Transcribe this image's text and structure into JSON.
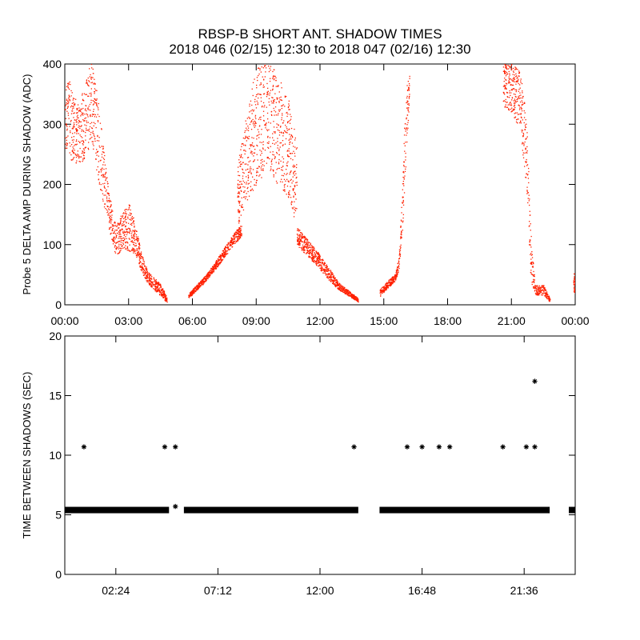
{
  "title_line1": "RBSP-B SHORT ANT. SHADOW TIMES",
  "title_line2": "2018 046 (02/15) 12:30 to 2018 047 (02/16) 12:30",
  "colors": {
    "delta_amp": "#ff2000",
    "shadow_interval": "#000000",
    "axes": "#000000"
  },
  "chart_data": [
    {
      "type": "scatter",
      "ylabel": "Probe 5 DELTA AMP DURING SHADOW (ADC)",
      "xlabel": "",
      "xlim_hours": [
        0,
        24
      ],
      "ylim": [
        0,
        400
      ],
      "yticks": [
        0,
        100,
        200,
        300,
        400
      ],
      "xtick_labels": [
        "00:00",
        "03:00",
        "06:00",
        "09:00",
        "12:00",
        "15:00",
        "18:00",
        "21:00",
        "00:00"
      ],
      "xtick_hours": [
        0,
        3,
        6,
        9,
        12,
        15,
        18,
        21,
        24
      ],
      "marker": "dot",
      "series": [
        {
          "color": "#ff2000",
          "segments": [
            {
              "t": [
                0.0,
                0.3,
                0.6,
                0.9,
                1.2,
                1.5,
                1.8,
                2.1,
                2.4,
                2.7,
                3.0,
                3.3,
                3.6,
                3.9,
                4.2,
                4.5,
                4.8
              ],
              "center": [
                330,
                300,
                285,
                300,
                340,
                290,
                215,
                150,
                105,
                125,
                130,
                110,
                70,
                45,
                35,
                25,
                8
              ],
              "spread": [
                70,
                60,
                50,
                60,
                70,
                70,
                50,
                30,
                25,
                30,
                40,
                25,
                15,
                10,
                10,
                10,
                4
              ]
            },
            {
              "t": [
                5.8,
                6.5,
                7.0,
                7.5,
                8.0,
                8.3
              ],
              "center": [
                15,
                40,
                62,
                88,
                112,
                125
              ],
              "spread": [
                4,
                5,
                6,
                8,
                10,
                10
              ]
            },
            {
              "t": [
                8.1,
                8.5,
                9.0,
                9.5,
                10.0,
                10.5,
                10.9
              ],
              "center": [
                180,
                240,
                300,
                320,
                290,
                260,
                200
              ],
              "spread": [
                50,
                70,
                100,
                95,
                90,
                85,
                70
              ]
            },
            {
              "t": [
                10.9,
                11.4,
                11.9,
                12.4,
                12.9,
                13.4,
                13.8
              ],
              "center": [
                115,
                95,
                75,
                52,
                30,
                18,
                8
              ],
              "spread": [
                15,
                14,
                12,
                10,
                6,
                4,
                3
              ]
            },
            {
              "t": [
                14.8,
                15.2,
                15.5,
                15.7,
                15.85,
                16.0,
                16.2
              ],
              "center": [
                20,
                35,
                45,
                70,
                150,
                280,
                380
              ],
              "spread": [
                6,
                6,
                6,
                12,
                40,
                60,
                30
              ]
            },
            {
              "t": [
                20.6,
                21.0,
                21.4,
                21.7,
                21.9,
                22.1,
                22.5,
                22.8
              ],
              "center": [
                370,
                360,
                340,
                250,
                80,
                25,
                25,
                8
              ],
              "spread": [
                40,
                40,
                50,
                60,
                40,
                8,
                8,
                3
              ]
            },
            {
              "t": [
                23.9,
                24.0
              ],
              "center": [
                45,
                25
              ],
              "spread": [
                20,
                10
              ]
            }
          ]
        }
      ]
    },
    {
      "type": "scatter",
      "ylabel": "TIME BETWEEN SHADOWS (SEC)",
      "xlabel": "",
      "xlim_hours": [
        0,
        24
      ],
      "ylim": [
        0,
        20
      ],
      "yticks": [
        0,
        5,
        10,
        15,
        20
      ],
      "xtick_labels": [
        "02:24",
        "07:12",
        "12:00",
        "16:48",
        "21:36"
      ],
      "xtick_hours": [
        2.4,
        7.2,
        12.0,
        16.8,
        21.6
      ],
      "marker": "asterisk",
      "series": [
        {
          "color": "#000000",
          "baseline_value": 5.4,
          "baseline_ranges_hours": [
            [
              0.0,
              4.9
            ],
            [
              5.6,
              13.8
            ],
            [
              14.8,
              22.8
            ],
            [
              23.7,
              24.0
            ]
          ],
          "points": [
            {
              "t": 0.9,
              "v": 10.7
            },
            {
              "t": 4.7,
              "v": 10.7
            },
            {
              "t": 5.2,
              "v": 10.7
            },
            {
              "t": 5.2,
              "v": 5.7
            },
            {
              "t": 13.6,
              "v": 10.7
            },
            {
              "t": 16.1,
              "v": 10.7
            },
            {
              "t": 16.8,
              "v": 10.7
            },
            {
              "t": 17.6,
              "v": 10.7
            },
            {
              "t": 18.1,
              "v": 10.7
            },
            {
              "t": 20.6,
              "v": 10.7
            },
            {
              "t": 21.7,
              "v": 10.7
            },
            {
              "t": 22.1,
              "v": 10.7
            },
            {
              "t": 22.1,
              "v": 16.2
            }
          ]
        }
      ]
    }
  ]
}
